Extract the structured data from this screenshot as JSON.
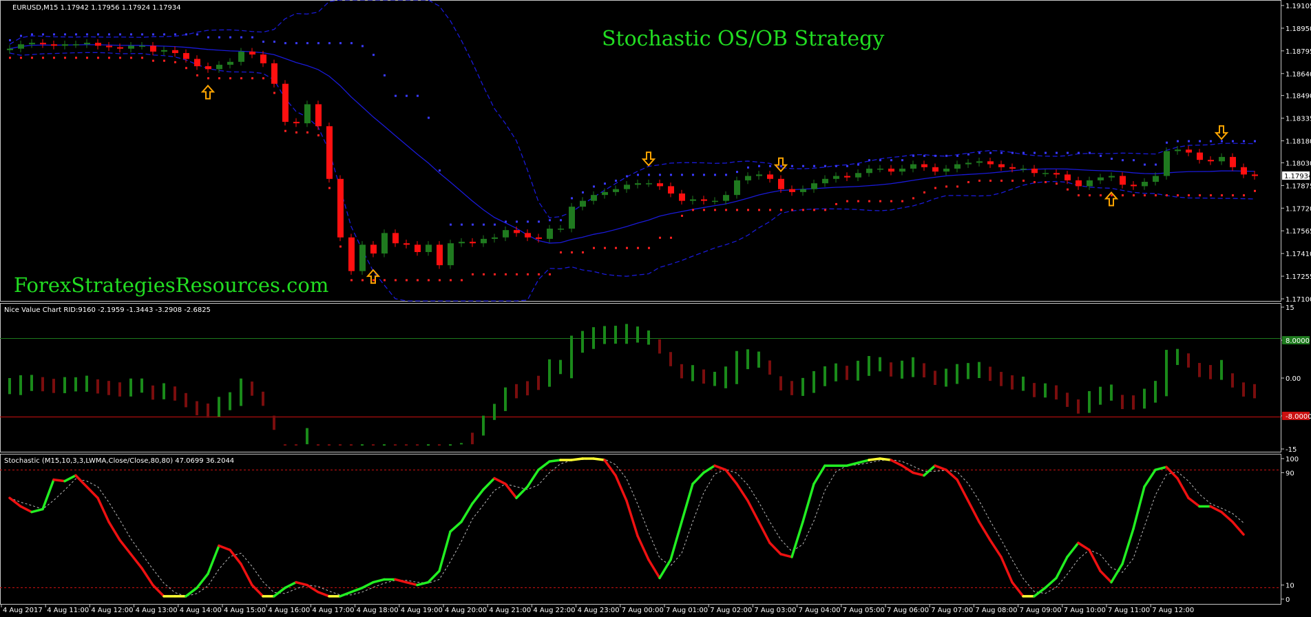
{
  "header": {
    "symbol_line": "EURUSD,M15  1.17942 1.17956 1.17924 1.17934",
    "strategy_title": "Stochastic OS/OB Strategy",
    "watermark": "ForexStrategiesResources.com"
  },
  "colors": {
    "bg": "#000000",
    "bull": "#1f7a1f",
    "bear": "#ff1010",
    "bands": "#1a1ad8",
    "arrow": "#ffa500",
    "title": "#22dd22",
    "watermark": "#22dd22",
    "stoch_up": "#22ee22",
    "stoch_down": "#ee1111",
    "stoch_flat": "#ffff33",
    "vc_up": "#1a8a1a",
    "vc_down": "#7a0d0d",
    "grid_green": "#1e7a1e",
    "grid_red": "#cc1111"
  },
  "chart_data": [
    {
      "type": "candlestick",
      "panel": "price",
      "y_ticks": [
        "1.19105",
        "1.18950",
        "1.18795",
        "1.18640",
        "1.18490",
        "1.18335",
        "1.18180",
        "1.18030",
        "1.17875",
        "1.17720",
        "1.17565",
        "1.17410",
        "1.17255",
        "1.17100"
      ],
      "ylim": [
        1.171,
        1.19105
      ],
      "current_price": "1.17934",
      "x_labels": [
        "4 Aug 2017",
        "4 Aug 11:00",
        "4 Aug 12:00",
        "4 Aug 13:00",
        "4 Aug 14:00",
        "4 Aug 15:00",
        "4 Aug 16:00",
        "4 Aug 17:00",
        "4 Aug 18:00",
        "4 Aug 19:00",
        "4 Aug 20:00",
        "4 Aug 21:00",
        "4 Aug 22:00",
        "4 Aug 23:00",
        "7 Aug 00:00",
        "7 Aug 01:00",
        "7 Aug 02:00",
        "7 Aug 03:00",
        "7 Aug 04:00",
        "7 Aug 05:00",
        "7 Aug 06:00",
        "7 Aug 07:00",
        "7 Aug 08:00",
        "7 Aug 09:00",
        "7 Aug 10:00",
        "7 Aug 11:00",
        "7 Aug 12:00"
      ],
      "close": [
        1.1881,
        1.1884,
        1.1885,
        1.1884,
        1.1883,
        1.1884,
        1.1884,
        1.1885,
        1.1883,
        1.1882,
        1.1881,
        1.1883,
        1.1883,
        1.1879,
        1.188,
        1.1878,
        1.1874,
        1.1869,
        1.1867,
        1.187,
        1.1872,
        1.1879,
        1.1877,
        1.1871,
        1.1857,
        1.1831,
        1.183,
        1.1843,
        1.1828,
        1.1792,
        1.1752,
        1.1729,
        1.1747,
        1.1741,
        1.1755,
        1.1748,
        1.1747,
        1.1742,
        1.1747,
        1.1733,
        1.1748,
        1.1749,
        1.1748,
        1.1751,
        1.1752,
        1.1757,
        1.1755,
        1.1752,
        1.1751,
        1.1758,
        1.1758,
        1.1773,
        1.1777,
        1.1781,
        1.1783,
        1.1785,
        1.1788,
        1.1789,
        1.1789,
        1.1787,
        1.1782,
        1.1777,
        1.1778,
        1.1777,
        1.1777,
        1.1781,
        1.1791,
        1.1794,
        1.1795,
        1.1792,
        1.1785,
        1.1783,
        1.1785,
        1.1789,
        1.1792,
        1.1794,
        1.1793,
        1.1796,
        1.1799,
        1.1799,
        1.1797,
        1.1799,
        1.1802,
        1.18,
        1.1797,
        1.1799,
        1.1802,
        1.1803,
        1.1804,
        1.1802,
        1.18,
        1.1799,
        1.1799,
        1.1796,
        1.1796,
        1.1795,
        1.1791,
        1.1787,
        1.1791,
        1.1793,
        1.1794,
        1.1788,
        1.1787,
        1.179,
        1.1794,
        1.1811,
        1.1812,
        1.181,
        1.1805,
        1.1804,
        1.1807,
        1.18,
        1.1795,
        1.1794
      ],
      "open": [
        1.188,
        1.1881,
        1.1884,
        1.1885,
        1.1884,
        1.1883,
        1.1884,
        1.1884,
        1.1885,
        1.1883,
        1.1882,
        1.1881,
        1.1883,
        1.1883,
        1.1879,
        1.188,
        1.1878,
        1.1874,
        1.1869,
        1.1867,
        1.187,
        1.1872,
        1.1879,
        1.1877,
        1.1871,
        1.1857,
        1.1831,
        1.183,
        1.1843,
        1.1828,
        1.1792,
        1.1752,
        1.1729,
        1.1747,
        1.1741,
        1.1755,
        1.1748,
        1.1747,
        1.1742,
        1.1747,
        1.1733,
        1.1748,
        1.1749,
        1.1748,
        1.1751,
        1.1752,
        1.1757,
        1.1755,
        1.1752,
        1.1751,
        1.1758,
        1.1758,
        1.1773,
        1.1777,
        1.1781,
        1.1783,
        1.1785,
        1.1788,
        1.1789,
        1.1789,
        1.1787,
        1.1782,
        1.1777,
        1.1778,
        1.1777,
        1.1777,
        1.1781,
        1.1791,
        1.1794,
        1.1795,
        1.1792,
        1.1785,
        1.1783,
        1.1785,
        1.1789,
        1.1792,
        1.1794,
        1.1793,
        1.1796,
        1.1799,
        1.1799,
        1.1797,
        1.1799,
        1.1802,
        1.18,
        1.1797,
        1.1799,
        1.1802,
        1.1803,
        1.1804,
        1.1802,
        1.18,
        1.1799,
        1.1799,
        1.1796,
        1.1796,
        1.1795,
        1.1791,
        1.1787,
        1.1791,
        1.1793,
        1.1794,
        1.1788,
        1.1787,
        1.179,
        1.1794,
        1.1811,
        1.1812,
        1.181,
        1.1805,
        1.1804,
        1.1807,
        1.18,
        1.1795
      ],
      "signals": [
        {
          "bar": 18,
          "dir": "up"
        },
        {
          "bar": 33,
          "dir": "up"
        },
        {
          "bar": 58,
          "dir": "down"
        },
        {
          "bar": 70,
          "dir": "down"
        },
        {
          "bar": 100,
          "dir": "up"
        },
        {
          "bar": 110,
          "dir": "down"
        }
      ]
    },
    {
      "type": "histogram",
      "panel": "value_chart",
      "title": "Nice Value Chart RID:9160 -2.1959 -1.3443 -3.2908 -2.6825",
      "y_ticks": [
        "15",
        "8.0000",
        "0.00",
        "-8.0000",
        "-15"
      ],
      "levels": [
        8,
        -8
      ],
      "ylim": [
        -15,
        15
      ]
    },
    {
      "type": "line",
      "panel": "stochastic",
      "title": "Stochastic (M15,10,3,3,LWMA,Close/Close,80,80) 47.0699 36.2044",
      "y_ticks": [
        "100",
        "90",
        "10",
        "0"
      ],
      "levels": [
        90,
        10
      ],
      "ylim": [
        0,
        100
      ],
      "main": [
        72,
        66,
        62,
        64,
        85,
        84,
        88,
        80,
        72,
        55,
        42,
        32,
        22,
        10,
        2,
        2,
        2,
        8,
        18,
        38,
        35,
        25,
        10,
        2,
        2,
        8,
        12,
        10,
        5,
        2,
        2,
        5,
        8,
        12,
        14,
        14,
        12,
        10,
        12,
        20,
        48,
        55,
        68,
        78,
        86,
        82,
        72,
        80,
        92,
        98,
        99,
        99,
        100,
        100,
        99,
        88,
        70,
        45,
        28,
        15,
        28,
        55,
        82,
        90,
        95,
        92,
        82,
        70,
        55,
        40,
        32,
        30,
        55,
        82,
        95,
        95,
        95,
        97,
        99,
        100,
        99,
        95,
        90,
        88,
        95,
        92,
        85,
        70,
        55,
        42,
        30,
        12,
        2,
        2,
        8,
        15,
        30,
        40,
        35,
        20,
        12,
        25,
        50,
        80,
        92,
        94,
        86,
        72,
        66,
        66,
        62,
        55,
        46
      ]
    }
  ]
}
